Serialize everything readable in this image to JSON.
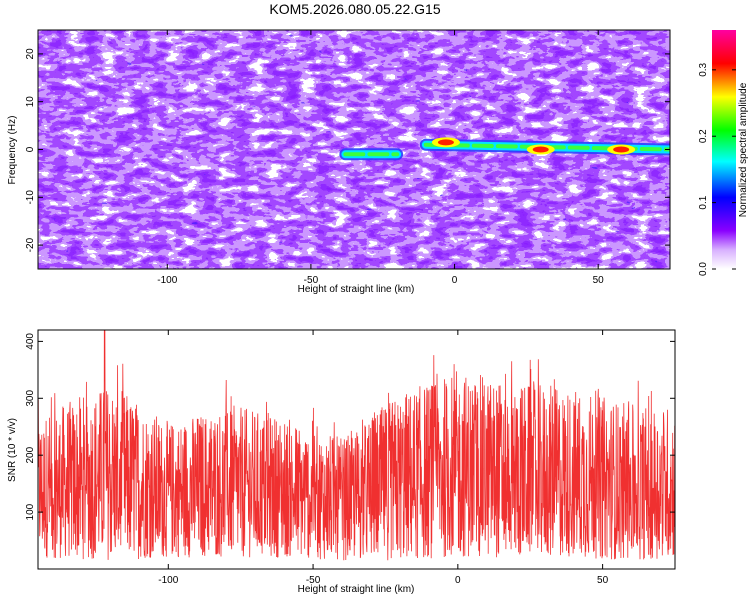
{
  "chart_data": [
    {
      "type": "heatmap",
      "title": "KOM5.2026.080.05.22.G15",
      "xlabel": "Height of straight line (km)",
      "ylabel": "Frequency (Hz)",
      "xlim": [
        -145,
        75
      ],
      "ylim": [
        -25,
        25
      ],
      "xticks": [
        -100,
        -50,
        0,
        50
      ],
      "yticks": [
        -20,
        -10,
        0,
        10,
        20
      ],
      "grid": false,
      "colorbar": {
        "label": "Normalized spectral amplitude",
        "range": [
          0,
          0.36
        ],
        "ticks": [
          "0.0",
          "0.1",
          "0.2",
          "0.3"
        ],
        "colormap": [
          "#ffffff",
          "#8a00ff",
          "#0000ff",
          "#00ffff",
          "#00ff00",
          "#ffff00",
          "#ff0000",
          "#ff00a0"
        ]
      },
      "ridge": {
        "segments": [
          {
            "x": [
              -38,
              -20
            ],
            "y": [
              -1,
              -1
            ]
          },
          {
            "x": [
              -10,
              75
            ],
            "y": [
              1,
              0
            ]
          }
        ],
        "peaks": [
          {
            "x": -3,
            "y": 1.5,
            "value": 0.33
          },
          {
            "x": 30,
            "y": 0,
            "value": 0.33
          },
          {
            "x": 58,
            "y": 0,
            "value": 0.29
          }
        ]
      }
    },
    {
      "type": "line",
      "xlabel": "Height of straight line (km)",
      "ylabel": "SNR (10 * v/v)",
      "xlim": [
        -145,
        75
      ],
      "ylim": [
        0,
        420
      ],
      "xticks": [
        -100,
        -50,
        0,
        50
      ],
      "yticks": [
        100,
        200,
        300,
        400
      ],
      "grid": false,
      "series": [
        {
          "color": "#f03030",
          "envelope": {
            "x": [
              -145,
              -120,
              -100,
              -80,
              -60,
              -40,
              -20,
              0,
              20,
              40,
              60,
              75
            ],
            "upper": [
              270,
              330,
              260,
              290,
              270,
              230,
              310,
              350,
              330,
              320,
              290,
              290
            ],
            "lower": [
              20,
              15,
              20,
              20,
              20,
              15,
              15,
              20,
              20,
              20,
              15,
              20
            ]
          },
          "peak": {
            "x": -122,
            "y": 420
          }
        }
      ]
    }
  ]
}
